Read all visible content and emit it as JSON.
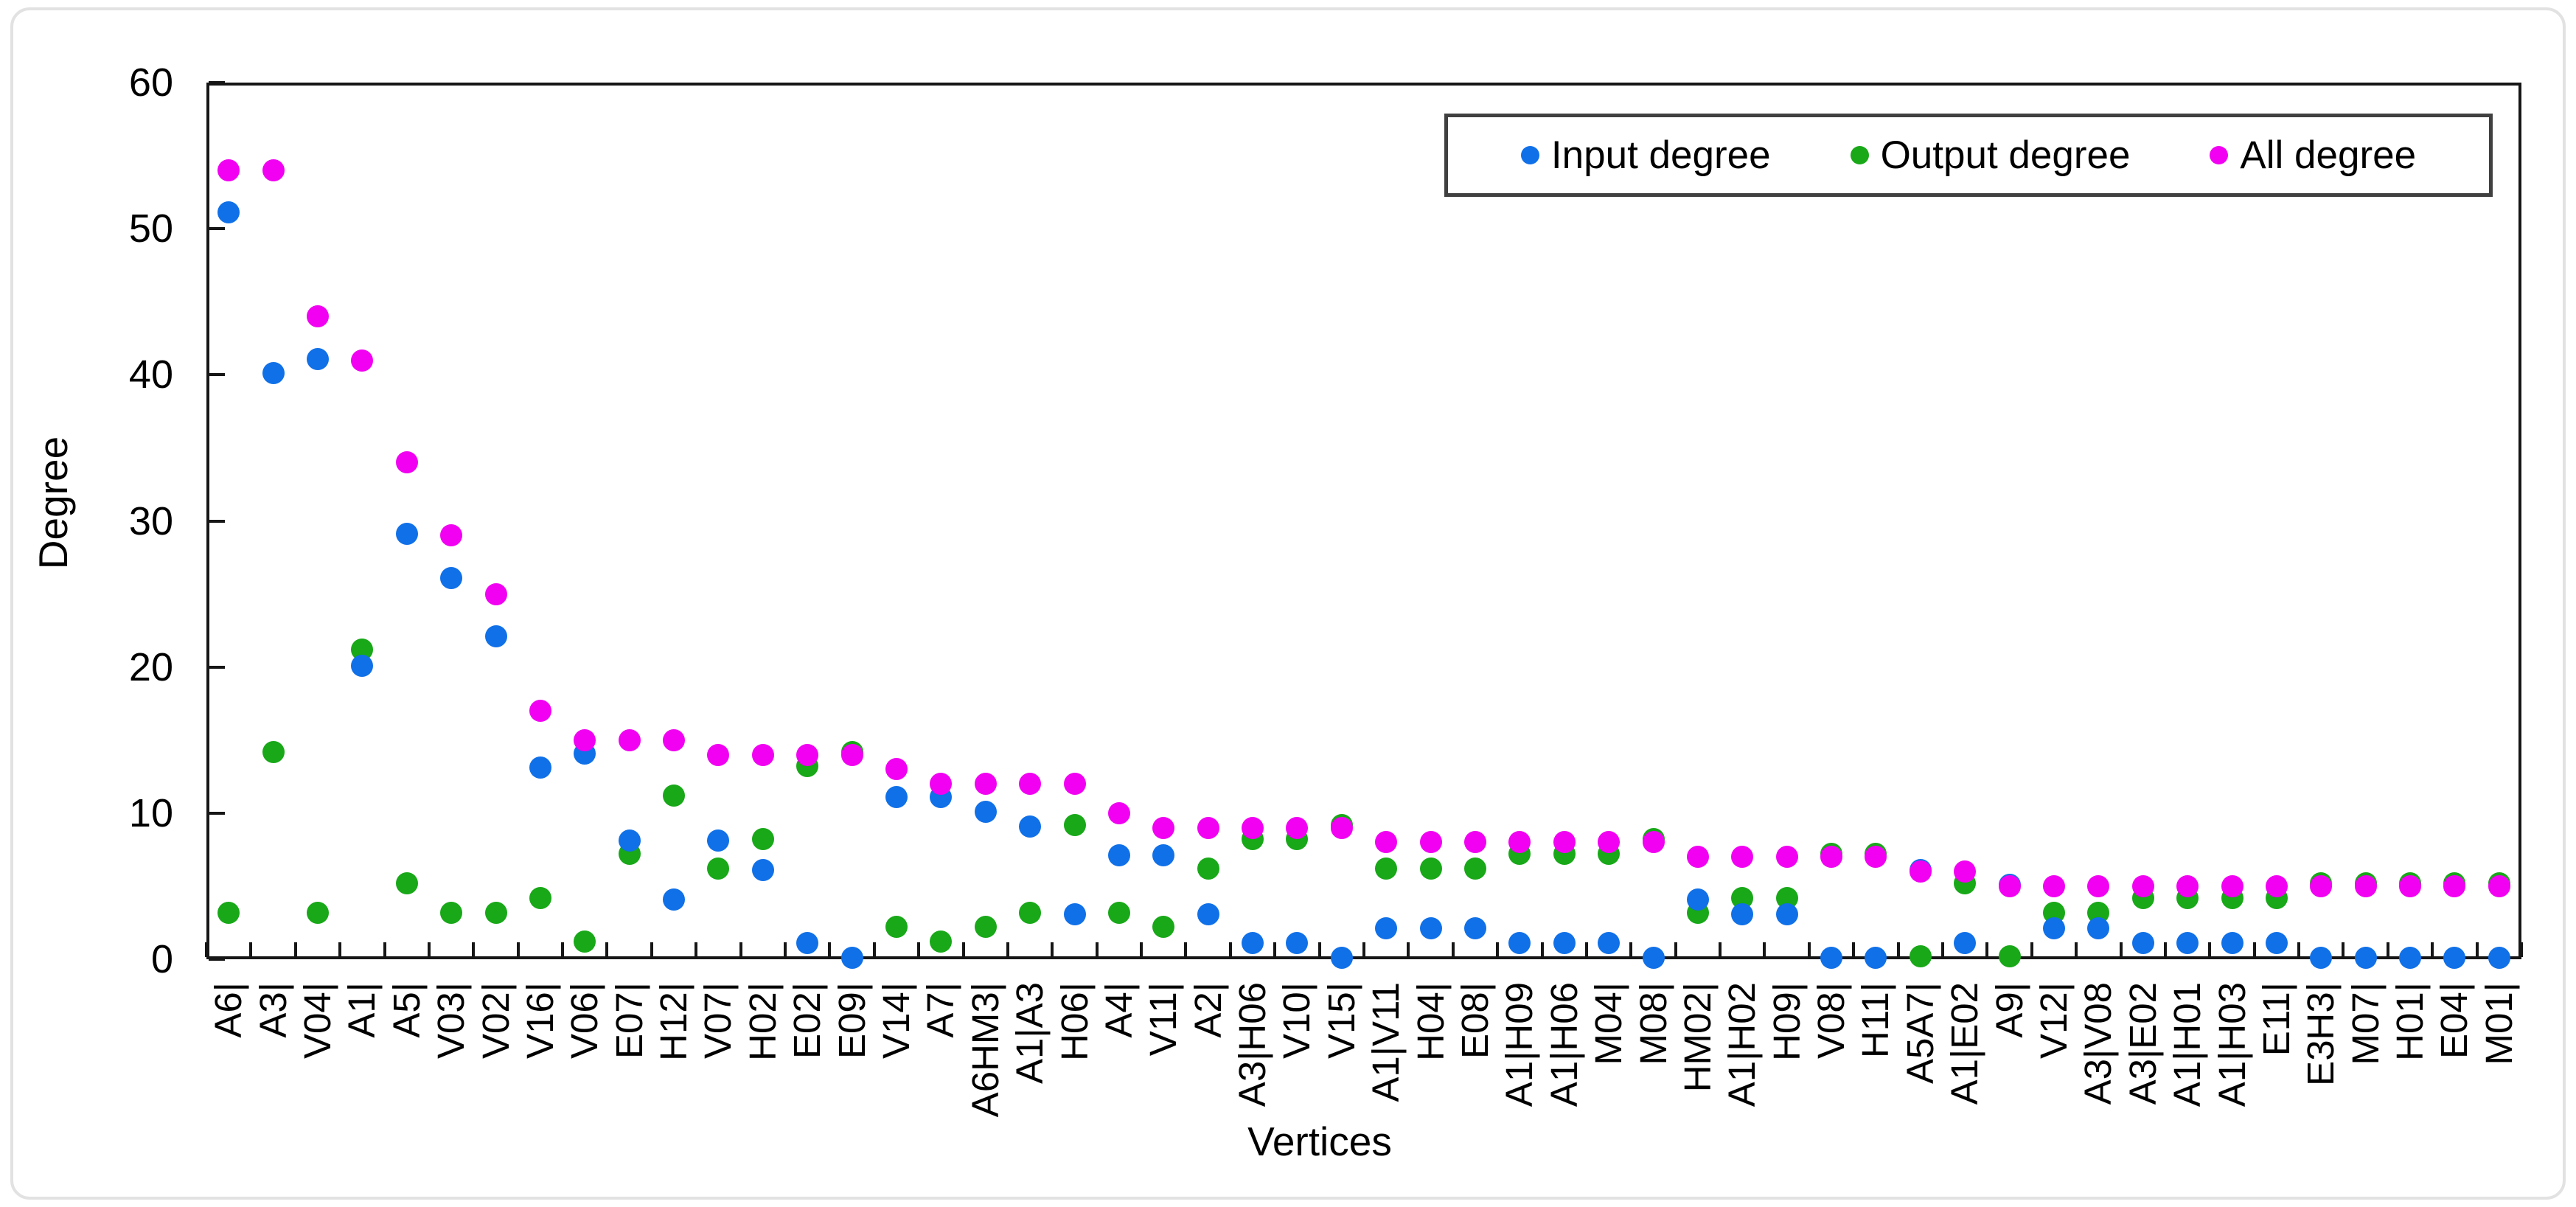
{
  "page": {
    "background": "#ffffff",
    "frame_border_color": "#e2e2e2"
  },
  "chart_data": {
    "type": "scatter",
    "title": "",
    "xlabel": "Vertices",
    "ylabel": "Degree",
    "ylim": [
      0,
      60
    ],
    "yticks": [
      0,
      10,
      20,
      30,
      40,
      50,
      60
    ],
    "grid": false,
    "legend_position": "top-right-inside",
    "marker": "circle",
    "axis_color": "#161616",
    "categories": [
      "A6|",
      "A3|",
      "V04|",
      "A1|",
      "A5|",
      "V03|",
      "V02|",
      "V16|",
      "V06|",
      "E07|",
      "H12|",
      "V07|",
      "H02|",
      "E02|",
      "E09|",
      "V14|",
      "A7|",
      "A6HM3|",
      "A1|A3",
      "H06|",
      "A4|",
      "V11|",
      "A2|",
      "A3|H06",
      "V10|",
      "V15|",
      "A1|V11",
      "H04|",
      "E08|",
      "A1|H09",
      "A1|H06",
      "M04|",
      "M08|",
      "HM02|",
      "A1|H02",
      "H09|",
      "V08|",
      "H11|",
      "A5A7|",
      "A1|E02",
      "A9|",
      "V12|",
      "A3|V08",
      "A3|E02",
      "A1|H01",
      "A1|H03",
      "E11|",
      "E3H3|",
      "M07|",
      "H01|",
      "E04|",
      "M01|"
    ],
    "series": [
      {
        "name": "Input degree",
        "color": "#1070E8",
        "values": [
          51,
          40,
          41,
          20,
          29,
          26,
          22,
          13,
          14,
          8,
          4,
          8,
          6,
          1,
          0,
          11,
          11,
          10,
          9,
          3,
          7,
          7,
          3,
          1,
          1,
          0,
          2,
          2,
          2,
          1,
          1,
          1,
          0,
          4,
          3,
          3,
          0,
          0,
          6,
          1,
          5,
          2,
          2,
          1,
          1,
          1,
          1,
          0,
          0,
          0,
          0,
          0
        ]
      },
      {
        "name": "Output degree",
        "color": "#18A818",
        "values": [
          3,
          14,
          3,
          21,
          5,
          3,
          3,
          4,
          1,
          7,
          11,
          6,
          8,
          13,
          14,
          2,
          1,
          2,
          3,
          9,
          3,
          2,
          6,
          8,
          8,
          9,
          6,
          6,
          6,
          7,
          7,
          7,
          8,
          3,
          4,
          4,
          7,
          7,
          0,
          5,
          0,
          3,
          3,
          4,
          4,
          4,
          4,
          5,
          5,
          5,
          5,
          5
        ]
      },
      {
        "name": "All degree",
        "color": "#F100F1",
        "values": [
          54,
          54,
          44,
          41,
          34,
          29,
          25,
          17,
          15,
          15,
          15,
          14,
          14,
          14,
          14,
          13,
          12,
          12,
          12,
          12,
          10,
          9,
          9,
          9,
          9,
          9,
          8,
          8,
          8,
          8,
          8,
          8,
          8,
          7,
          7,
          7,
          7,
          7,
          6,
          6,
          5,
          5,
          5,
          5,
          5,
          5,
          5,
          5,
          5,
          5,
          5,
          5
        ]
      }
    ]
  }
}
